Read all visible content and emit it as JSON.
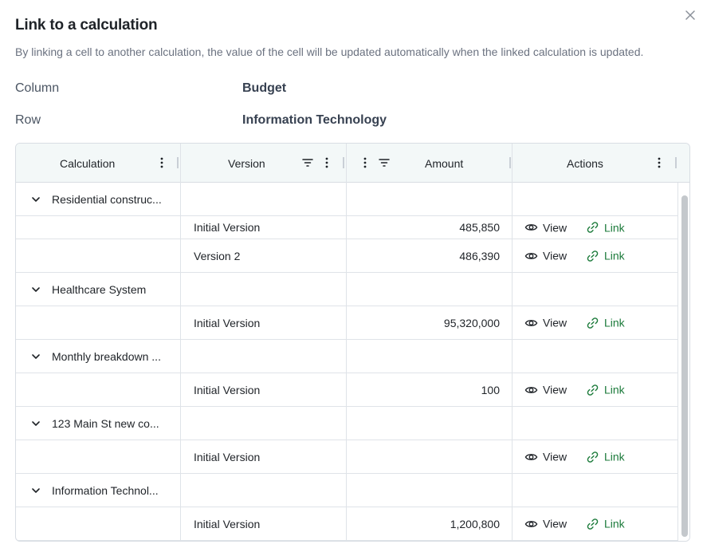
{
  "dialog": {
    "title": "Link to a calculation",
    "subtitle": "By linking a cell to another calculation, the value of the cell will be updated automatically when the linked calculation is updated.",
    "close_icon": "close-icon"
  },
  "fields": {
    "column_label": "Column",
    "column_value": "Budget",
    "row_label": "Row",
    "row_value": "Information Technology"
  },
  "grid": {
    "headers": {
      "calculation": "Calculation",
      "version": "Version",
      "amount": "Amount",
      "actions": "Actions"
    },
    "action_labels": {
      "view": "View",
      "link": "Link"
    },
    "rows": [
      {
        "type": "group",
        "calculation": "Residential construc..."
      },
      {
        "type": "item",
        "version": "Initial Version",
        "amount": "485,850"
      },
      {
        "type": "item",
        "version": "Version 2",
        "amount": "486,390"
      },
      {
        "type": "group",
        "calculation": "Healthcare System"
      },
      {
        "type": "item",
        "version": "Initial Version",
        "amount": "95,320,000"
      },
      {
        "type": "group",
        "calculation": "Monthly breakdown ..."
      },
      {
        "type": "item",
        "version": "Initial Version",
        "amount": "100"
      },
      {
        "type": "group",
        "calculation": "123 Main St new co..."
      },
      {
        "type": "item",
        "version": "Initial Version",
        "amount": ""
      },
      {
        "type": "group",
        "calculation": "Information Technol..."
      },
      {
        "type": "item",
        "version": "Initial Version",
        "amount": "1,200,800"
      }
    ]
  },
  "colors": {
    "link_green": "#1b7a3a",
    "header_bg": "#f3f8f8",
    "border": "#d8dde3"
  }
}
